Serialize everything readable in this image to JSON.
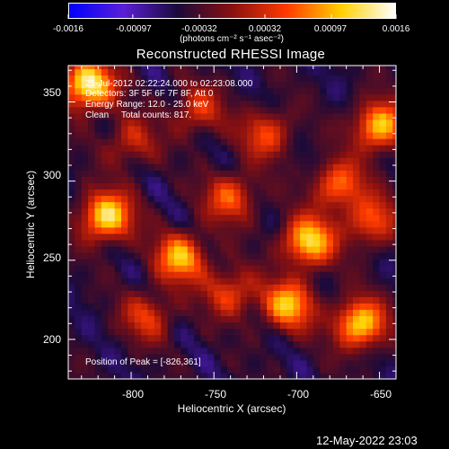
{
  "colorbar": {
    "tick_labels": [
      "-0.0016",
      "-0.00097",
      "-0.00032",
      "0.00032",
      "0.00097",
      "0.0016"
    ],
    "tick_values": [
      -0.0016,
      -0.00097,
      -0.00032,
      0.00032,
      0.00097,
      0.0016
    ],
    "range": [
      -0.0016,
      0.0016
    ],
    "units": "(photons cm⁻² s⁻¹ asec⁻²)",
    "colors": [
      "#0000ff",
      "#5a1fd6",
      "#1a0a3a",
      "#8a1010",
      "#ff3a00",
      "#ffd000",
      "#ffffff"
    ]
  },
  "chart_data": {
    "type": "heatmap",
    "title": "Reconstructed RHESSI Image",
    "xlabel": "Heliocentric X (arcsec)",
    "ylabel": "Heliocentric Y (arcsec)",
    "xlim": [
      -838,
      -640
    ],
    "ylim": [
      175,
      373
    ],
    "x_ticks": [
      -800,
      -750,
      -700,
      -650
    ],
    "x_tick_labels": [
      "-800",
      "-750",
      "-700",
      "-650"
    ],
    "y_ticks": [
      200,
      250,
      300,
      350
    ],
    "y_tick_labels": [
      "200",
      "250",
      "300",
      "350"
    ],
    "bright_sources": [
      {
        "x": -826,
        "y": 361,
        "level": 1.0
      },
      {
        "x": -815,
        "y": 278,
        "level": 0.9
      },
      {
        "x": -770,
        "y": 252,
        "level": 0.75
      },
      {
        "x": -662,
        "y": 210,
        "level": 0.85
      },
      {
        "x": -693,
        "y": 262,
        "level": 0.85
      },
      {
        "x": -650,
        "y": 335,
        "level": 0.8
      },
      {
        "x": -705,
        "y": 222,
        "level": 0.75
      },
      {
        "x": -740,
        "y": 290,
        "level": 0.55
      },
      {
        "x": -675,
        "y": 298,
        "level": 0.6
      },
      {
        "x": -718,
        "y": 330,
        "level": 0.5
      },
      {
        "x": -760,
        "y": 345,
        "level": 0.45
      },
      {
        "x": -800,
        "y": 325,
        "level": 0.4
      },
      {
        "x": -740,
        "y": 230,
        "level": 0.5
      },
      {
        "x": -655,
        "y": 275,
        "level": 0.55
      },
      {
        "x": -790,
        "y": 215,
        "level": 0.45
      }
    ],
    "peak": [
      -826,
      361
    ]
  },
  "annotations": {
    "time_range": "25-Jul-2012 02:22:24.000 to 02:23:08.000",
    "detectors": "Detectors: 3F 5F 6F 7F 8F, Att 0",
    "energy_range": "Energy Range: 12.0 - 25.0 keV",
    "algorithm": "Clean     Total counts: 817.",
    "peak_position": "Position of Peak = [-826,361]"
  },
  "footer": {
    "timestamp": "12-May-2022 23:03"
  }
}
